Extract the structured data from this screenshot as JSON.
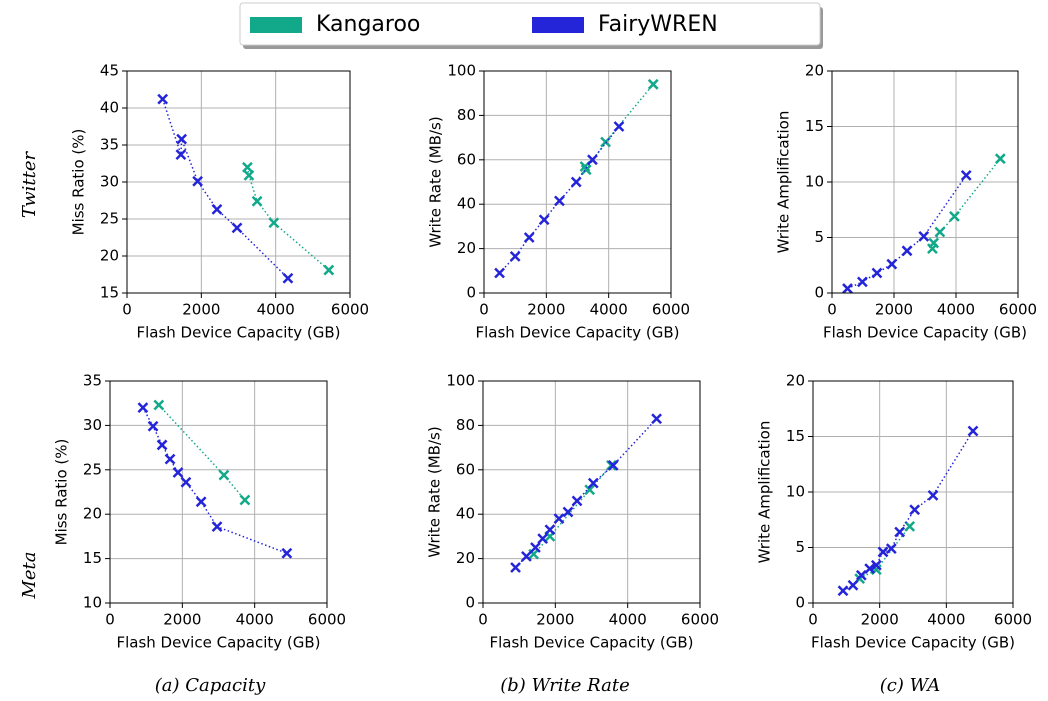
{
  "chart_data": [
    {
      "type": "scatter",
      "xlabel": "Flash Device Capacity (GB)",
      "ylabel": "Miss Ratio (%)",
      "xlim": [
        0,
        6000
      ],
      "ylim": [
        15,
        45
      ],
      "xticks": [
        0,
        2000,
        4000,
        6000
      ],
      "yticks": [
        15,
        20,
        25,
        30,
        35,
        40,
        45
      ],
      "grid": true,
      "series": [
        {
          "name": "Kangaroo",
          "color": "#12a88a",
          "x": [
            3240,
            3280,
            3500,
            3950,
            5430
          ],
          "values": [
            32.0,
            30.9,
            27.4,
            24.5,
            18.1
          ]
        },
        {
          "name": "FairyWREN",
          "color": "#2424d8",
          "x": [
            960,
            1450,
            1470,
            1900,
            2420,
            2960,
            4330
          ],
          "values": [
            41.2,
            33.7,
            35.8,
            30.1,
            26.3,
            23.8,
            17.0
          ]
        }
      ]
    },
    {
      "type": "scatter",
      "xlabel": "Flash Device Capacity (GB)",
      "ylabel": "Write Rate (MB/s)",
      "xlim": [
        0,
        6000
      ],
      "ylim": [
        0,
        100
      ],
      "xticks": [
        0,
        2000,
        4000,
        6000
      ],
      "yticks": [
        0,
        20,
        40,
        60,
        80,
        100
      ],
      "grid": true,
      "series": [
        {
          "name": "Kangaroo",
          "color": "#12a88a",
          "x": [
            3240,
            3280,
            3900,
            5430
          ],
          "values": [
            57,
            55.5,
            68,
            94
          ]
        },
        {
          "name": "FairyWREN",
          "color": "#2424d8",
          "x": [
            500,
            1000,
            1450,
            1930,
            2420,
            2960,
            3480,
            4330
          ],
          "values": [
            9,
            16.5,
            25,
            33,
            41.5,
            50,
            60,
            75
          ]
        }
      ]
    },
    {
      "type": "scatter",
      "xlabel": "Flash Device Capacity (GB)",
      "ylabel": "Write Amplification",
      "xlim": [
        0,
        6000
      ],
      "ylim": [
        0,
        20
      ],
      "xticks": [
        0,
        2000,
        4000,
        6000
      ],
      "yticks": [
        0,
        5,
        10,
        15,
        20
      ],
      "grid": true,
      "series": [
        {
          "name": "Kangaroo",
          "color": "#12a88a",
          "x": [
            3240,
            3280,
            3480,
            3950,
            5430
          ],
          "values": [
            4.0,
            4.5,
            5.5,
            6.9,
            12.1
          ]
        },
        {
          "name": "FairyWREN",
          "color": "#2424d8",
          "x": [
            500,
            980,
            1450,
            1930,
            2420,
            2960,
            4330
          ],
          "values": [
            0.4,
            1.0,
            1.8,
            2.6,
            3.8,
            5.1,
            10.6
          ]
        }
      ]
    },
    {
      "type": "scatter",
      "xlabel": "Flash Device Capacity (GB)",
      "ylabel": "Miss Ratio (%)",
      "xlim": [
        0,
        6000
      ],
      "ylim": [
        10,
        35
      ],
      "xticks": [
        0,
        2000,
        4000,
        6000
      ],
      "yticks": [
        10,
        15,
        20,
        25,
        30,
        35
      ],
      "grid": true,
      "series": [
        {
          "name": "Kangaroo",
          "color": "#12a88a",
          "x": [
            1350,
            3150,
            3730
          ],
          "values": [
            32.3,
            24.4,
            21.6
          ]
        },
        {
          "name": "FairyWREN",
          "color": "#2424d8",
          "x": [
            910,
            1190,
            1440,
            1660,
            1880,
            2100,
            2520,
            2960,
            4890
          ],
          "values": [
            32.0,
            29.9,
            27.8,
            26.2,
            24.7,
            23.6,
            21.4,
            18.6,
            15.6
          ]
        }
      ]
    },
    {
      "type": "scatter",
      "xlabel": "Flash Device Capacity (GB)",
      "ylabel": "Write Rate (MB/s)",
      "xlim": [
        0,
        6000
      ],
      "ylim": [
        0,
        100
      ],
      "xticks": [
        0,
        2000,
        4000,
        6000
      ],
      "yticks": [
        0,
        20,
        40,
        60,
        80,
        100
      ],
      "grid": true,
      "series": [
        {
          "name": "Kangaroo",
          "color": "#12a88a",
          "x": [
            1400,
            1850,
            2950,
            3550
          ],
          "values": [
            22,
            30,
            51,
            62
          ]
        },
        {
          "name": "FairyWREN",
          "color": "#2424d8",
          "x": [
            900,
            1200,
            1450,
            1650,
            1850,
            2100,
            2350,
            2600,
            3050,
            3600,
            4800
          ],
          "values": [
            16,
            21,
            25,
            29,
            33,
            38,
            41,
            46,
            54,
            62,
            83
          ]
        }
      ]
    },
    {
      "type": "scatter",
      "xlabel": "Flash Device Capacity (GB)",
      "ylabel": "Write Amplification",
      "xlim": [
        0,
        6000
      ],
      "ylim": [
        0,
        20
      ],
      "xticks": [
        0,
        2000,
        4000,
        6000
      ],
      "yticks": [
        0,
        5,
        10,
        15,
        20
      ],
      "grid": true,
      "series": [
        {
          "name": "Kangaroo",
          "color": "#12a88a",
          "x": [
            1400,
            1900,
            2900
          ],
          "values": [
            2.2,
            3.0,
            6.9
          ]
        },
        {
          "name": "FairyWREN",
          "color": "#2424d8",
          "x": [
            900,
            1200,
            1450,
            1700,
            1900,
            2100,
            2350,
            2600,
            3050,
            3600,
            4800
          ],
          "values": [
            1.1,
            1.6,
            2.5,
            3.1,
            3.4,
            4.6,
            4.9,
            6.4,
            8.4,
            9.7,
            15.5
          ]
        }
      ]
    }
  ],
  "row_labels": [
    "Twitter",
    "Meta"
  ],
  "captions": [
    "(a) Capacity",
    "(b) Write Rate",
    "(c) WA"
  ]
}
